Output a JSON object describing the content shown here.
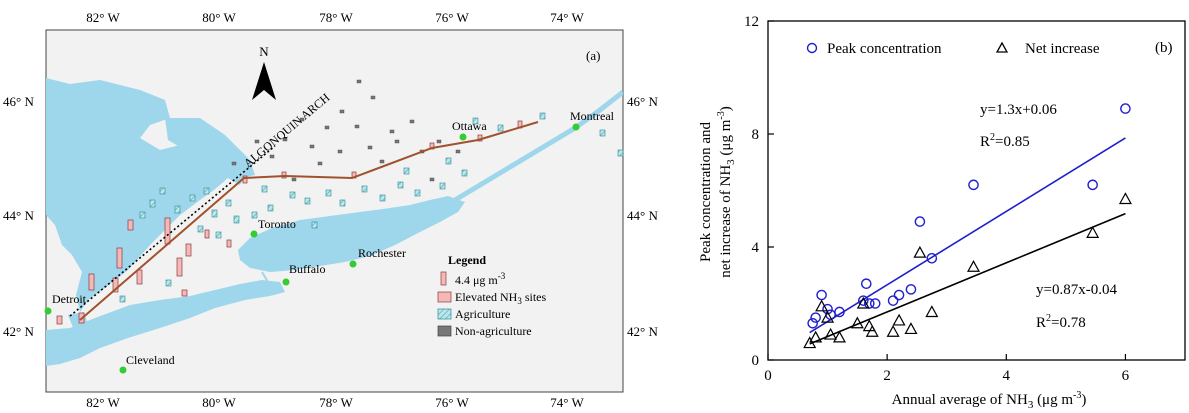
{
  "map_panel": {
    "panel_label": "(a)",
    "north_label": "N",
    "arch_label": "ALGONQUIN ARCH",
    "top_lon_labels": [
      "82° W",
      "80° W",
      "78° W",
      "76° W",
      "74° W"
    ],
    "bottom_lon_labels": [
      "82° W",
      "80° W",
      "78° W",
      "76° W",
      "74° W"
    ],
    "left_lat_labels": [
      "46° N",
      "44° N",
      "42° N"
    ],
    "right_lat_labels": [
      "46° N",
      "44° N",
      "42° N"
    ],
    "cities": [
      "Ottawa",
      "Montreal",
      "Toronto",
      "Rochester",
      "Buffalo",
      "Detroit",
      "Cleveland"
    ],
    "legend": {
      "title": "Legend",
      "scale_label": "4.4 μg m",
      "scale_exponent": "-3",
      "elevated": "Elevated NH",
      "elevated_sub": "3",
      "elevated_tail": " sites",
      "agriculture": "Agriculture",
      "non_agriculture": "Non-agriculture"
    },
    "colors": {
      "lake": "#9ed6ec",
      "land": "#f2f2f2",
      "bar_elevated": "#f4b8b8",
      "bar_agriculture": "#7cc8cf",
      "bar_non_agriculture": "#777777",
      "transect": "#a0522d",
      "city_dot": "#33cc33"
    }
  },
  "chart_data": {
    "type": "scatter",
    "panel_label": "(b)",
    "xlabel": "Annual average of NH",
    "xlabel_sub": "3",
    "xlabel_unit": " (μg m",
    "xlabel_exp": "-3",
    "xlabel_close": ")",
    "ylabel_line1": "Peak concentration and",
    "ylabel_line2": "net increase of NH",
    "ylabel_sub": "3",
    "ylabel_unit": " (μg m",
    "ylabel_exp": "-3",
    "ylabel_close": ")",
    "xlim": [
      0,
      7
    ],
    "ylim": [
      0,
      12
    ],
    "x_ticks": [
      0,
      2,
      4,
      6
    ],
    "y_ticks": [
      0,
      4,
      8,
      12
    ],
    "grid": false,
    "legend_position": "top",
    "series": [
      {
        "name": "Peak concentration",
        "marker": "circle",
        "color": "#1f1fcc",
        "fit_label": "y=1.3x+0.06",
        "r2_label": "R",
        "r2_value": "=0.85",
        "fit": {
          "slope": 1.3,
          "intercept": 0.06,
          "x_range": [
            0.7,
            6.0
          ]
        },
        "points": [
          [
            0.75,
            1.3
          ],
          [
            0.8,
            1.5
          ],
          [
            0.9,
            2.3
          ],
          [
            1.0,
            1.8
          ],
          [
            1.05,
            1.6
          ],
          [
            1.2,
            1.7
          ],
          [
            1.6,
            2.1
          ],
          [
            1.65,
            2.7
          ],
          [
            1.7,
            2.0
          ],
          [
            1.8,
            2.0
          ],
          [
            2.1,
            2.1
          ],
          [
            2.2,
            2.3
          ],
          [
            2.4,
            2.5
          ],
          [
            2.55,
            4.9
          ],
          [
            2.75,
            3.6
          ],
          [
            3.45,
            6.2
          ],
          [
            5.45,
            6.2
          ],
          [
            6.0,
            8.9
          ]
        ]
      },
      {
        "name": "Net increase",
        "marker": "triangle",
        "color": "#000000",
        "fit_label": "y=0.87x-0.04",
        "r2_label": "R",
        "r2_value": "=0.78",
        "fit": {
          "slope": 0.87,
          "intercept": -0.04,
          "x_range": [
            0.7,
            6.0
          ]
        },
        "points": [
          [
            0.7,
            0.6
          ],
          [
            0.8,
            0.8
          ],
          [
            0.9,
            1.9
          ],
          [
            1.0,
            1.5
          ],
          [
            1.05,
            0.9
          ],
          [
            1.2,
            0.8
          ],
          [
            1.5,
            1.3
          ],
          [
            1.6,
            2.0
          ],
          [
            1.7,
            1.2
          ],
          [
            1.75,
            1.0
          ],
          [
            2.1,
            1.0
          ],
          [
            2.2,
            1.4
          ],
          [
            2.4,
            1.1
          ],
          [
            2.55,
            3.8
          ],
          [
            2.75,
            1.7
          ],
          [
            3.45,
            3.3
          ],
          [
            5.45,
            4.5
          ],
          [
            6.0,
            5.7
          ]
        ]
      }
    ]
  }
}
